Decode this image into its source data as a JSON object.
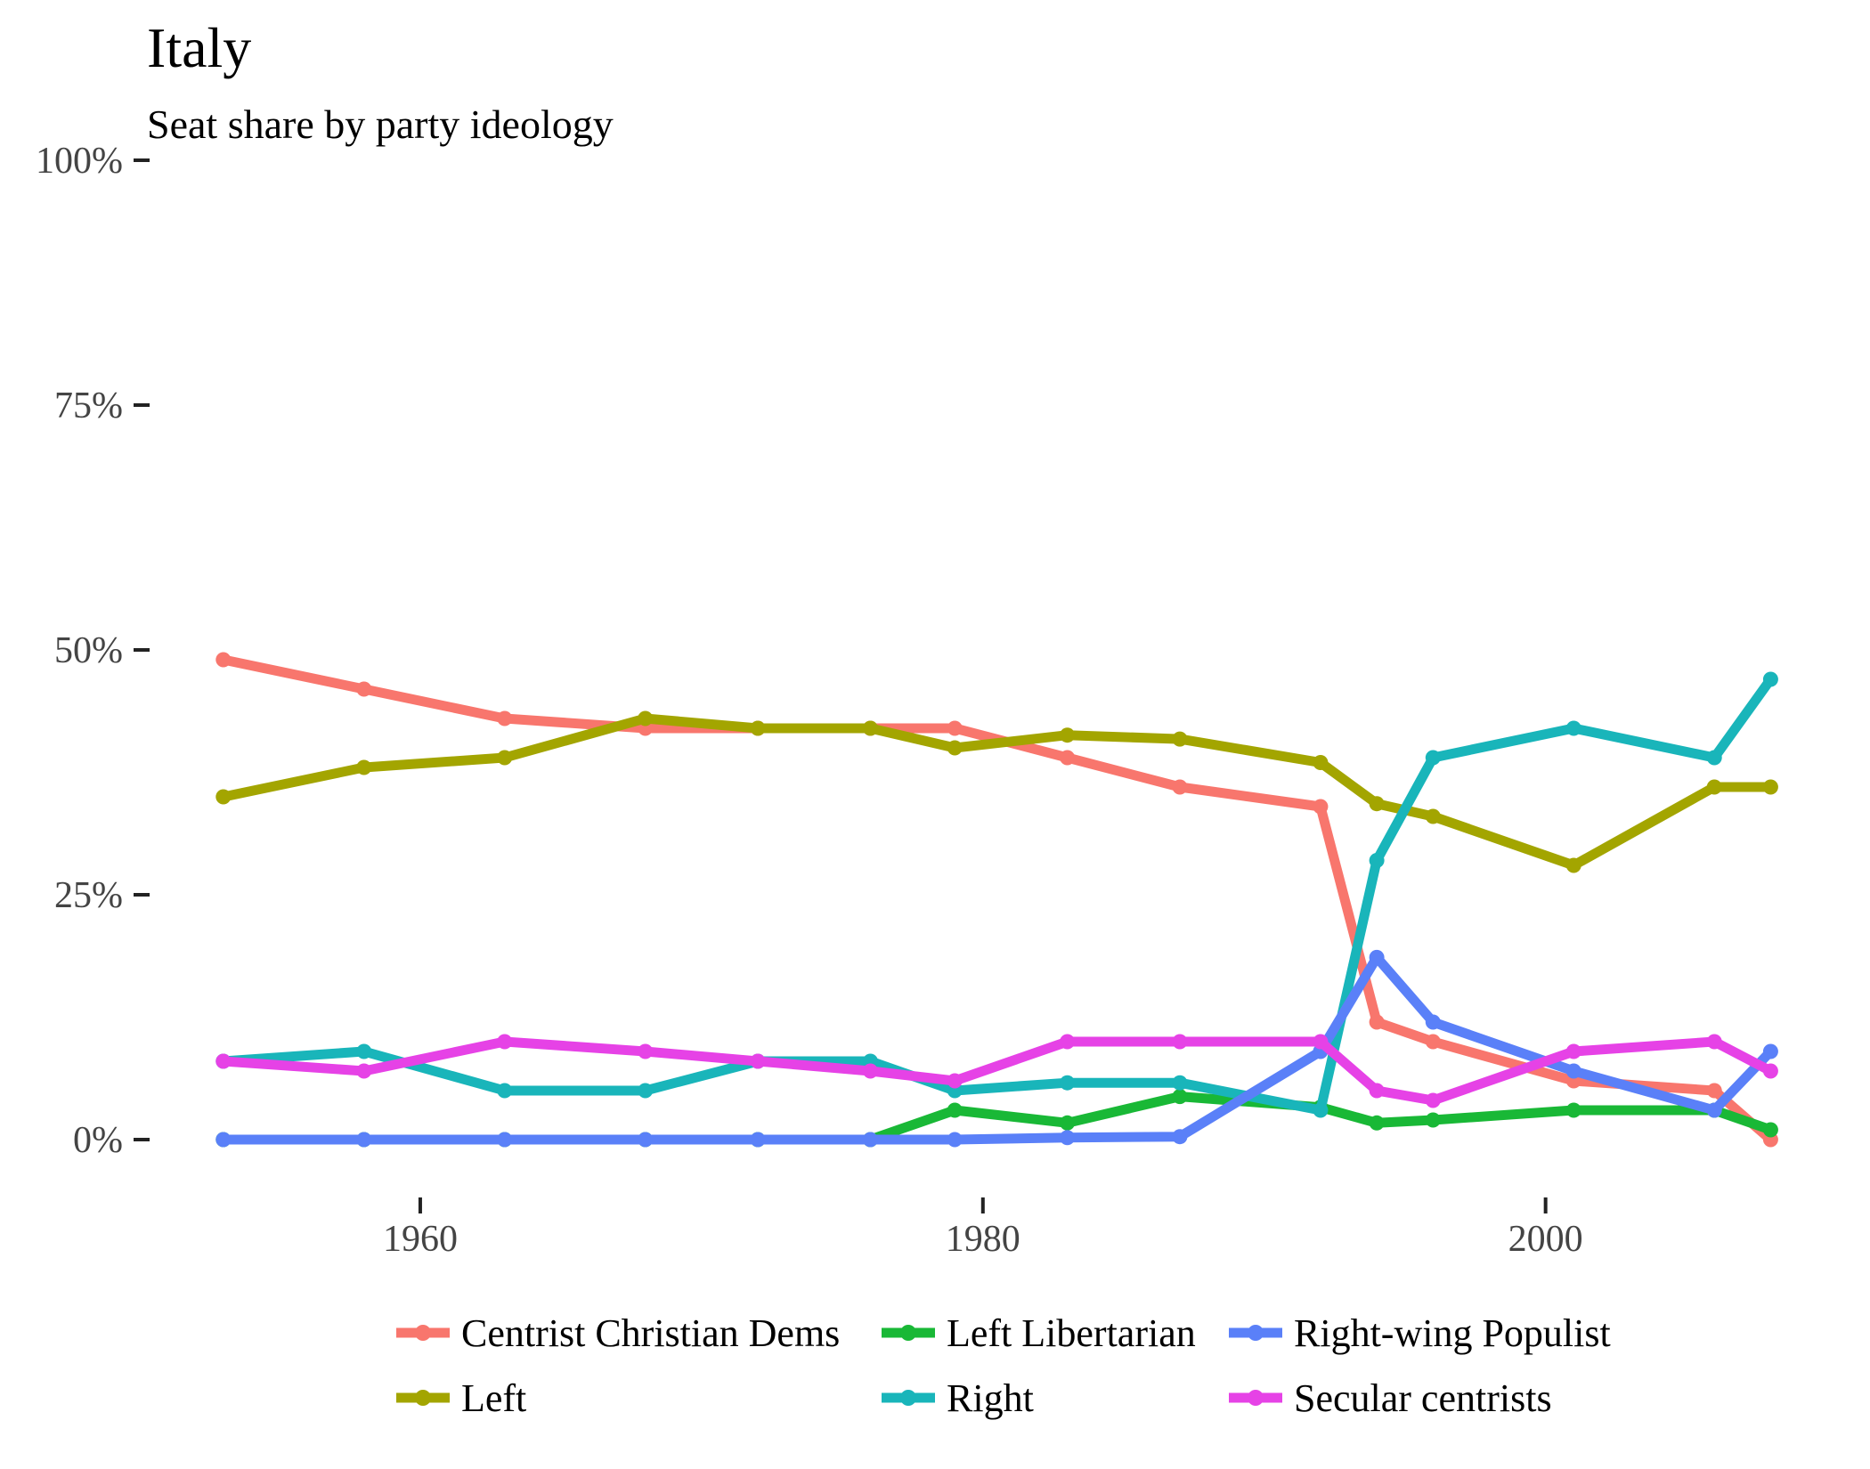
{
  "colors": {
    "Centrist Christian Dems": "#F8766D",
    "Left": "#A3A500",
    "Left Libertarian": "#19B836",
    "Right": "#19B5BA",
    "Right-wing Populist": "#5A80F8",
    "Secular centrists": "#E642E6"
  },
  "chart_data": {
    "type": "line",
    "title": "Italy",
    "subtitle": "Seat share by party ideology",
    "xlabel": "",
    "ylabel": "",
    "xlim": [
      1952.5,
      2009
    ],
    "ylim": [
      -0.05,
      1.0
    ],
    "x_ticks": [
      1960,
      1980,
      2000
    ],
    "x_tick_labels": [
      "1960",
      "1980",
      "2000"
    ],
    "y_ticks": [
      0,
      0.25,
      0.5,
      0.75,
      1.0
    ],
    "y_tick_labels": [
      "0%",
      "25%",
      "50%",
      "75%",
      "100%"
    ],
    "grid": false,
    "legend_position": "bottom",
    "x": [
      1953,
      1958,
      1963,
      1968,
      1972,
      1976,
      1979,
      1983,
      1987,
      1992,
      1994,
      1996,
      2001,
      2006,
      2008
    ],
    "series": [
      {
        "name": "Centrist Christian Dems",
        "values": [
          0.49,
          0.46,
          0.43,
          0.42,
          0.42,
          0.42,
          0.42,
          0.39,
          0.36,
          0.34,
          0.12,
          0.1,
          0.06,
          0.05,
          0.0
        ]
      },
      {
        "name": "Left",
        "values": [
          0.35,
          0.38,
          0.39,
          0.43,
          0.42,
          0.42,
          0.4,
          0.413,
          0.409,
          0.385,
          0.343,
          0.33,
          0.28,
          0.36,
          0.36
        ]
      },
      {
        "name": "Left Libertarian",
        "values": [
          0.0,
          0.0,
          0.0,
          0.0,
          0.0,
          0.0,
          0.03,
          0.017,
          0.044,
          0.033,
          0.017,
          0.02,
          0.03,
          0.03,
          0.01
        ]
      },
      {
        "name": "Right",
        "values": [
          0.08,
          0.09,
          0.05,
          0.05,
          0.08,
          0.08,
          0.05,
          0.058,
          0.058,
          0.03,
          0.285,
          0.39,
          0.42,
          0.39,
          0.47
        ]
      },
      {
        "name": "Right-wing Populist",
        "values": [
          0.0,
          0.0,
          0.0,
          0.0,
          0.0,
          0.0,
          0.0,
          0.002,
          0.003,
          0.09,
          0.186,
          0.12,
          0.07,
          0.03,
          0.09
        ]
      },
      {
        "name": "Secular centrists",
        "values": [
          0.08,
          0.07,
          0.1,
          0.09,
          0.08,
          0.07,
          0.06,
          0.1,
          0.1,
          0.1,
          0.05,
          0.04,
          0.09,
          0.1,
          0.07
        ]
      }
    ],
    "legend": [
      "Centrist Christian Dems",
      "Left Libertarian",
      "Right-wing Populist",
      "Left",
      "Right",
      "Secular centrists"
    ]
  }
}
